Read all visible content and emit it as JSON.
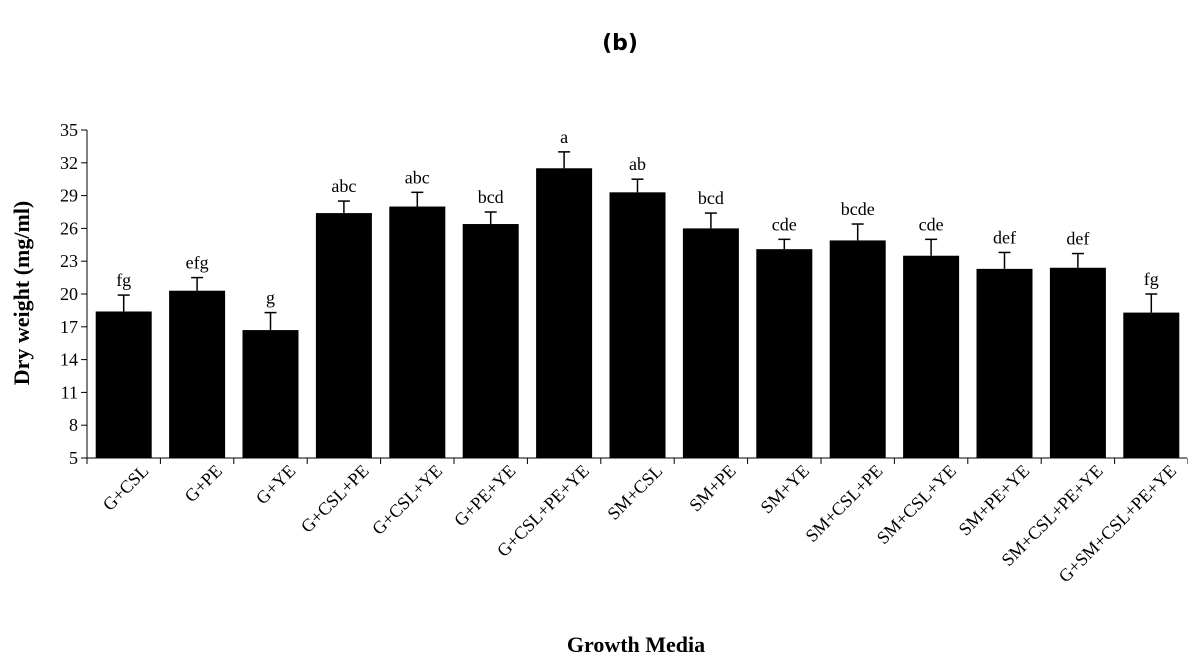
{
  "chart_data": {
    "type": "bar",
    "panel_label": "(b)",
    "title": "",
    "xlabel": "Growth Media",
    "ylabel": "Dry weight (mg/ml)",
    "ylim": [
      5,
      35
    ],
    "yticks": [
      5,
      8,
      11,
      14,
      17,
      20,
      23,
      26,
      29,
      32,
      35
    ],
    "grid": false,
    "bar_color": "#000000",
    "categories": [
      "G+CSL",
      "G+PE",
      "G+YE",
      "G+CSL+PE",
      "G+CSL+YE",
      "G+PE+YE",
      "G+CSL+PE+YE",
      "SM+CSL",
      "SM+PE",
      "SM+YE",
      "SM+CSL+PE",
      "SM+CSL+YE",
      "SM+PE+YE",
      "SM+CSL+PE+YE",
      "G+SM+CSL+PE+YE"
    ],
    "values": [
      18.4,
      20.3,
      16.7,
      27.4,
      28.0,
      26.4,
      31.5,
      29.3,
      26.0,
      24.1,
      24.9,
      23.5,
      22.3,
      22.4,
      18.3
    ],
    "errors": [
      1.5,
      1.2,
      1.6,
      1.1,
      1.3,
      1.1,
      1.5,
      1.2,
      1.4,
      0.9,
      1.5,
      1.5,
      1.5,
      1.3,
      1.7
    ],
    "annotations": [
      "fg",
      "efg",
      "g",
      "abc",
      "abc",
      "bcd",
      "a",
      "ab",
      "bcd",
      "cde",
      "bcde",
      "cde",
      "def",
      "def",
      "fg"
    ]
  }
}
